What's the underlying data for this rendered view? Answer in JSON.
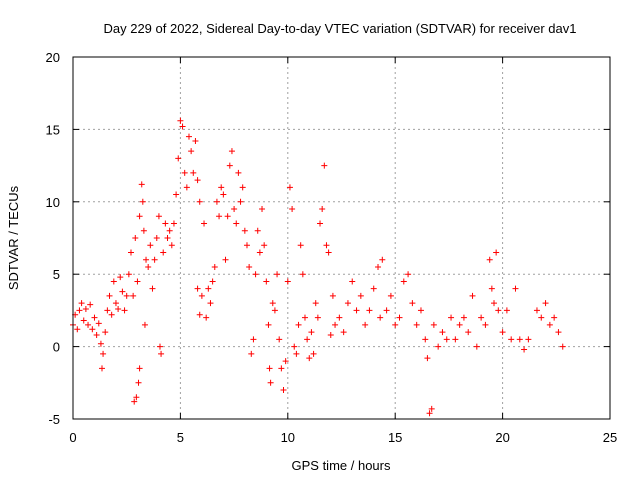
{
  "chart_data": {
    "type": "scatter",
    "title": "Day 229 of 2022, Sidereal Day-to-day VTEC variation (SDTVAR) for receiver dav1",
    "xlabel": "GPS time / hours",
    "ylabel": "SDTVAR / TECUs",
    "xlim": [
      0,
      25
    ],
    "ylim": [
      -5,
      20
    ],
    "xticks": [
      0,
      5,
      10,
      15,
      20,
      25
    ],
    "yticks": [
      -5,
      0,
      5,
      10,
      15,
      20
    ],
    "xtick_labels": [
      "0",
      "5",
      "10",
      "15",
      "20",
      "25"
    ],
    "ytick_labels": [
      "-5",
      "0",
      "5",
      "10",
      "15",
      "20"
    ],
    "grid": true,
    "marker": "+",
    "color": "#ff0000",
    "series": [
      {
        "name": "SDTVAR",
        "points": [
          [
            0.0,
            1.5
          ],
          [
            0.1,
            2.2
          ],
          [
            0.2,
            1.2
          ],
          [
            0.3,
            2.5
          ],
          [
            0.4,
            3.0
          ],
          [
            0.5,
            1.8
          ],
          [
            0.6,
            2.6
          ],
          [
            0.7,
            1.5
          ],
          [
            0.8,
            2.9
          ],
          [
            0.9,
            1.2
          ],
          [
            1.0,
            2.0
          ],
          [
            1.1,
            0.8
          ],
          [
            1.2,
            1.6
          ],
          [
            1.3,
            0.2
          ],
          [
            1.35,
            -1.5
          ],
          [
            1.4,
            -0.5
          ],
          [
            1.5,
            1.0
          ],
          [
            1.6,
            2.5
          ],
          [
            1.7,
            3.5
          ],
          [
            1.8,
            2.2
          ],
          [
            1.9,
            4.5
          ],
          [
            2.0,
            3.0
          ],
          [
            2.1,
            2.6
          ],
          [
            2.2,
            4.8
          ],
          [
            2.3,
            3.8
          ],
          [
            2.4,
            2.5
          ],
          [
            2.5,
            3.5
          ],
          [
            2.6,
            5.0
          ],
          [
            2.7,
            6.5
          ],
          [
            2.8,
            3.5
          ],
          [
            2.85,
            -3.8
          ],
          [
            2.95,
            -3.5
          ],
          [
            3.05,
            -2.5
          ],
          [
            3.1,
            -1.5
          ],
          [
            2.9,
            7.5
          ],
          [
            3.0,
            4.5
          ],
          [
            3.1,
            9.0
          ],
          [
            3.2,
            11.2
          ],
          [
            3.25,
            10.0
          ],
          [
            3.3,
            8.0
          ],
          [
            3.35,
            1.5
          ],
          [
            3.4,
            6.0
          ],
          [
            3.5,
            5.5
          ],
          [
            3.6,
            7.0
          ],
          [
            3.7,
            4.0
          ],
          [
            3.8,
            6.0
          ],
          [
            3.9,
            7.5
          ],
          [
            4.0,
            9.0
          ],
          [
            4.05,
            0.0
          ],
          [
            4.1,
            -0.5
          ],
          [
            4.2,
            6.5
          ],
          [
            4.3,
            8.5
          ],
          [
            4.4,
            7.5
          ],
          [
            4.5,
            8.0
          ],
          [
            4.6,
            7.0
          ],
          [
            4.7,
            8.5
          ],
          [
            4.8,
            10.5
          ],
          [
            4.9,
            13.0
          ],
          [
            5.0,
            15.6
          ],
          [
            5.1,
            15.2
          ],
          [
            5.2,
            12.0
          ],
          [
            5.3,
            11.0
          ],
          [
            5.4,
            14.5
          ],
          [
            5.5,
            13.5
          ],
          [
            5.6,
            12.0
          ],
          [
            5.7,
            14.2
          ],
          [
            5.8,
            11.5
          ],
          [
            5.9,
            10.0
          ],
          [
            5.8,
            4.0
          ],
          [
            5.9,
            2.2
          ],
          [
            6.0,
            3.5
          ],
          [
            6.1,
            8.5
          ],
          [
            6.2,
            2.0
          ],
          [
            6.3,
            4.0
          ],
          [
            6.4,
            3.0
          ],
          [
            6.5,
            4.5
          ],
          [
            6.6,
            5.5
          ],
          [
            6.7,
            10.0
          ],
          [
            6.8,
            9.0
          ],
          [
            6.9,
            11.0
          ],
          [
            7.0,
            10.5
          ],
          [
            7.1,
            6.0
          ],
          [
            7.2,
            9.0
          ],
          [
            7.3,
            12.5
          ],
          [
            7.4,
            13.5
          ],
          [
            7.5,
            9.5
          ],
          [
            7.6,
            8.5
          ],
          [
            7.7,
            12.0
          ],
          [
            7.8,
            10.0
          ],
          [
            7.9,
            11.0
          ],
          [
            8.0,
            8.0
          ],
          [
            8.1,
            7.0
          ],
          [
            8.2,
            5.5
          ],
          [
            8.3,
            -0.5
          ],
          [
            8.4,
            0.5
          ],
          [
            8.5,
            5.0
          ],
          [
            8.6,
            8.0
          ],
          [
            8.7,
            6.5
          ],
          [
            8.8,
            9.5
          ],
          [
            8.9,
            7.0
          ],
          [
            9.0,
            4.5
          ],
          [
            9.1,
            1.5
          ],
          [
            9.15,
            -1.5
          ],
          [
            9.2,
            -2.5
          ],
          [
            9.3,
            3.0
          ],
          [
            9.4,
            2.5
          ],
          [
            9.5,
            5.0
          ],
          [
            9.6,
            0.5
          ],
          [
            9.7,
            -1.5
          ],
          [
            9.8,
            -3.0
          ],
          [
            9.9,
            -1.0
          ],
          [
            10.0,
            4.5
          ],
          [
            10.1,
            11.0
          ],
          [
            10.2,
            9.5
          ],
          [
            10.3,
            0.0
          ],
          [
            10.4,
            -0.5
          ],
          [
            10.5,
            1.5
          ],
          [
            10.6,
            7.0
          ],
          [
            10.7,
            5.0
          ],
          [
            10.8,
            2.0
          ],
          [
            10.9,
            0.5
          ],
          [
            11.0,
            -0.8
          ],
          [
            11.1,
            1.0
          ],
          [
            11.2,
            -0.5
          ],
          [
            11.3,
            3.0
          ],
          [
            11.4,
            2.0
          ],
          [
            11.5,
            8.5
          ],
          [
            11.6,
            9.5
          ],
          [
            11.7,
            12.5
          ],
          [
            11.8,
            7.0
          ],
          [
            11.9,
            6.5
          ],
          [
            12.0,
            0.8
          ],
          [
            12.1,
            3.5
          ],
          [
            12.2,
            1.5
          ],
          [
            12.4,
            2.0
          ],
          [
            12.6,
            1.0
          ],
          [
            12.8,
            3.0
          ],
          [
            13.0,
            4.5
          ],
          [
            13.2,
            2.5
          ],
          [
            13.4,
            3.5
          ],
          [
            13.6,
            1.5
          ],
          [
            13.8,
            2.5
          ],
          [
            14.0,
            4.0
          ],
          [
            14.2,
            5.5
          ],
          [
            14.3,
            2.0
          ],
          [
            14.4,
            6.0
          ],
          [
            14.6,
            2.5
          ],
          [
            14.8,
            3.5
          ],
          [
            15.0,
            1.5
          ],
          [
            15.2,
            2.0
          ],
          [
            15.4,
            4.5
          ],
          [
            15.6,
            5.0
          ],
          [
            15.8,
            3.0
          ],
          [
            16.0,
            1.5
          ],
          [
            16.2,
            2.5
          ],
          [
            16.4,
            0.5
          ],
          [
            16.5,
            -0.8
          ],
          [
            16.6,
            -4.6
          ],
          [
            16.7,
            -4.3
          ],
          [
            16.8,
            1.5
          ],
          [
            17.0,
            0.0
          ],
          [
            17.2,
            1.0
          ],
          [
            17.4,
            0.5
          ],
          [
            17.6,
            2.0
          ],
          [
            17.8,
            0.5
          ],
          [
            18.0,
            1.5
          ],
          [
            18.2,
            2.0
          ],
          [
            18.4,
            1.0
          ],
          [
            18.6,
            3.5
          ],
          [
            18.8,
            0.0
          ],
          [
            19.0,
            2.0
          ],
          [
            19.2,
            1.5
          ],
          [
            19.4,
            6.0
          ],
          [
            19.5,
            4.0
          ],
          [
            19.6,
            3.0
          ],
          [
            19.7,
            6.5
          ],
          [
            19.8,
            2.5
          ],
          [
            20.0,
            1.0
          ],
          [
            20.2,
            2.5
          ],
          [
            20.4,
            0.5
          ],
          [
            20.6,
            4.0
          ],
          [
            20.8,
            0.5
          ],
          [
            21.0,
            -0.2
          ],
          [
            21.2,
            0.5
          ],
          [
            21.6,
            2.5
          ],
          [
            21.8,
            2.0
          ],
          [
            22.0,
            3.0
          ],
          [
            22.2,
            1.5
          ],
          [
            22.4,
            2.0
          ],
          [
            22.6,
            1.0
          ],
          [
            22.8,
            0.0
          ]
        ]
      }
    ]
  }
}
